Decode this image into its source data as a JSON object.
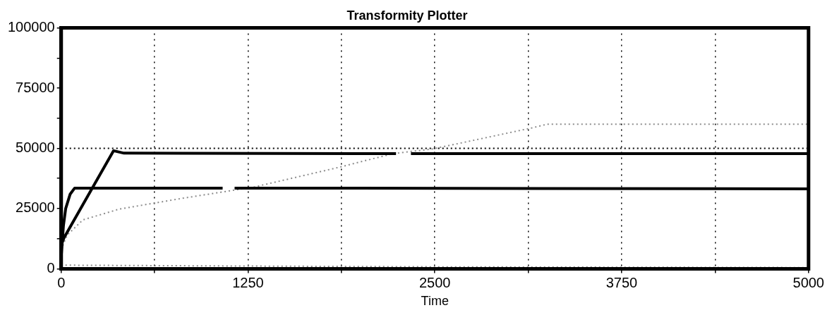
{
  "chart_data": {
    "type": "line",
    "title": "Transformity Plotter",
    "xlabel": "Time",
    "xlim": [
      0,
      5000
    ],
    "xticks": [
      0,
      {
        "value": 625,
        "label": null
      },
      1250,
      {
        "value": 1875,
        "label": null
      },
      2500,
      {
        "value": 3125,
        "label": null
      },
      3750,
      {
        "value": 4375,
        "label": null
      },
      5000
    ],
    "ylim": [
      0,
      100000
    ],
    "yticks": [
      0,
      {
        "value": 12500,
        "label": null
      },
      25000,
      {
        "value": 37500,
        "label": null
      },
      50000,
      {
        "value": 62500,
        "label": null
      },
      75000,
      {
        "value": 87500,
        "label": null
      },
      100000
    ],
    "grid": "x",
    "legend": false,
    "marker": "none",
    "ref_lines": [
      {
        "axis": "y",
        "value": 50000,
        "line_style": "dotted",
        "color": "#000000"
      }
    ],
    "series": [
      {
        "color": "#000000",
        "x": [
          0,
          20,
          350,
          420,
          2240,
          2290,
          2340,
          5000
        ],
        "values": [
          10000,
          13000,
          49000,
          48000,
          47800,
          null,
          47800,
          47800
        ]
      },
      {
        "color": "#000000",
        "x": [
          0,
          15,
          30,
          60,
          90,
          1080,
          1120,
          1160,
          5000
        ],
        "values": [
          5000,
          18000,
          25000,
          31000,
          33500,
          33500,
          null,
          33500,
          33200
        ]
      },
      {
        "color": "#8c8c8c",
        "line_style": "dotted",
        "x": [
          0,
          40,
          145,
          390,
          815,
          1295,
          1850,
          2220,
          2490,
          2810,
          3150,
          3250,
          5000
        ],
        "values": [
          8000,
          14000,
          20300,
          24800,
          29300,
          34000,
          42000,
          47800,
          49800,
          54000,
          58500,
          60000,
          60000
        ]
      },
      {
        "color": "#8c8c8c",
        "line_style": "dotted",
        "x": [
          0,
          1000,
          2500,
          5000
        ],
        "values": [
          1500,
          1200,
          800,
          500
        ]
      }
    ]
  }
}
